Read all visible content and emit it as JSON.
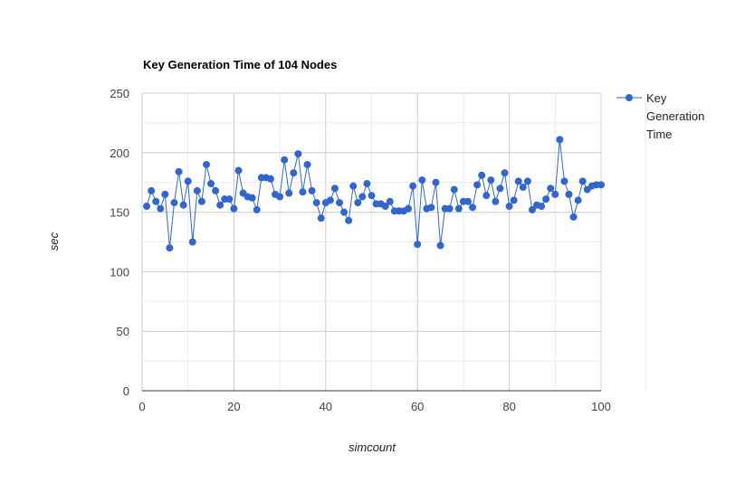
{
  "chart_data": {
    "type": "line",
    "title": "Key Generation Time of 104 Nodes",
    "xlabel": "simcount",
    "ylabel": "sec",
    "xlim": [
      0,
      100
    ],
    "ylim": [
      0,
      250
    ],
    "x_ticks": [
      "0",
      "20",
      "40",
      "60",
      "80",
      "100"
    ],
    "y_ticks": [
      "0",
      "50",
      "100",
      "150",
      "200",
      "250"
    ],
    "grid": true,
    "legend_position": "right",
    "series": [
      {
        "name": "Key Generation Time",
        "legend_lines": [
          "Key",
          "Generation",
          "Time"
        ],
        "color": "#3366cc",
        "x": [
          1,
          2,
          3,
          4,
          5,
          6,
          7,
          8,
          9,
          10,
          11,
          12,
          13,
          14,
          15,
          16,
          17,
          18,
          19,
          20,
          21,
          22,
          23,
          24,
          25,
          26,
          27,
          28,
          29,
          30,
          31,
          32,
          33,
          34,
          35,
          36,
          37,
          38,
          39,
          40,
          41,
          42,
          43,
          44,
          45,
          46,
          47,
          48,
          49,
          50,
          51,
          52,
          53,
          54,
          55,
          56,
          57,
          58,
          59,
          60,
          61,
          62,
          63,
          64,
          65,
          66,
          67,
          68,
          69,
          70,
          71,
          72,
          73,
          74,
          75,
          76,
          77,
          78,
          79,
          80,
          81,
          82,
          83,
          84,
          85,
          86,
          87,
          88,
          89,
          90,
          91,
          92,
          93,
          94,
          95,
          96,
          97,
          98,
          99,
          100
        ],
        "y": [
          155,
          168,
          159,
          153,
          165,
          120,
          158,
          184,
          156,
          176,
          125,
          168,
          159,
          190,
          174,
          168,
          156,
          161,
          161,
          153,
          185,
          166,
          163,
          162,
          152,
          179,
          179,
          178,
          165,
          163,
          194,
          166,
          183,
          199,
          167,
          190,
          168,
          158,
          145,
          158,
          160,
          170,
          158,
          150,
          143,
          172,
          158,
          163,
          174,
          164,
          157,
          157,
          155,
          159,
          151,
          151,
          151,
          153,
          172,
          123,
          177,
          153,
          154,
          175,
          122,
          153,
          153,
          169,
          153,
          159,
          159,
          154,
          173,
          181,
          164,
          177,
          159,
          170,
          183,
          155,
          160,
          176,
          171,
          176,
          152,
          156,
          155,
          161,
          170,
          165,
          211,
          176,
          165,
          146,
          160,
          176,
          169,
          172,
          173,
          173
        ]
      }
    ]
  }
}
